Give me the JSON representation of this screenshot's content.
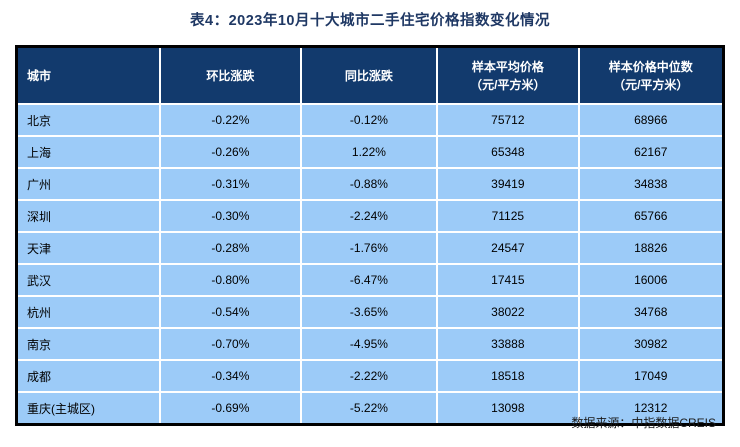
{
  "title": "表4：2023年10月十大城市二手住宅价格指数变化情况",
  "source_note": "数据来源：中指数据CREIS",
  "colors": {
    "title_text": "#1F3864",
    "header_bg": "#123A6D",
    "header_text": "#FFFFFF",
    "row_bg": "#9CCBF8",
    "grid_line": "#FFFFFF",
    "outer_border": "#000000",
    "cell_text": "#000000"
  },
  "chart_data": {
    "type": "table",
    "title": "表4：2023年10月十大城市二手住宅价格指数变化情况",
    "source": "数据来源：中指数据CREIS",
    "columns": [
      {
        "line1": "城市",
        "line2": ""
      },
      {
        "line1": "环比涨跌",
        "line2": ""
      },
      {
        "line1": "同比涨跌",
        "line2": ""
      },
      {
        "line1": "样本平均价格",
        "line2": "（元/平方米）"
      },
      {
        "line1": "样本价格中位数",
        "line2": "（元/平方米）"
      }
    ],
    "rows": [
      [
        "北京",
        "-0.22%",
        "-0.12%",
        "75712",
        "68966"
      ],
      [
        "上海",
        "-0.26%",
        "1.22%",
        "65348",
        "62167"
      ],
      [
        "广州",
        "-0.31%",
        "-0.88%",
        "39419",
        "34838"
      ],
      [
        "深圳",
        "-0.30%",
        "-2.24%",
        "71125",
        "65766"
      ],
      [
        "天津",
        "-0.28%",
        "-1.76%",
        "24547",
        "18826"
      ],
      [
        "武汉",
        "-0.80%",
        "-6.47%",
        "17415",
        "16006"
      ],
      [
        "杭州",
        "-0.54%",
        "-3.65%",
        "38022",
        "34768"
      ],
      [
        "南京",
        "-0.70%",
        "-4.95%",
        "33888",
        "30982"
      ],
      [
        "成都",
        "-0.34%",
        "-2.22%",
        "18518",
        "17049"
      ],
      [
        "重庆(主城区)",
        "-0.69%",
        "-5.22%",
        "13098",
        "12312"
      ]
    ]
  }
}
